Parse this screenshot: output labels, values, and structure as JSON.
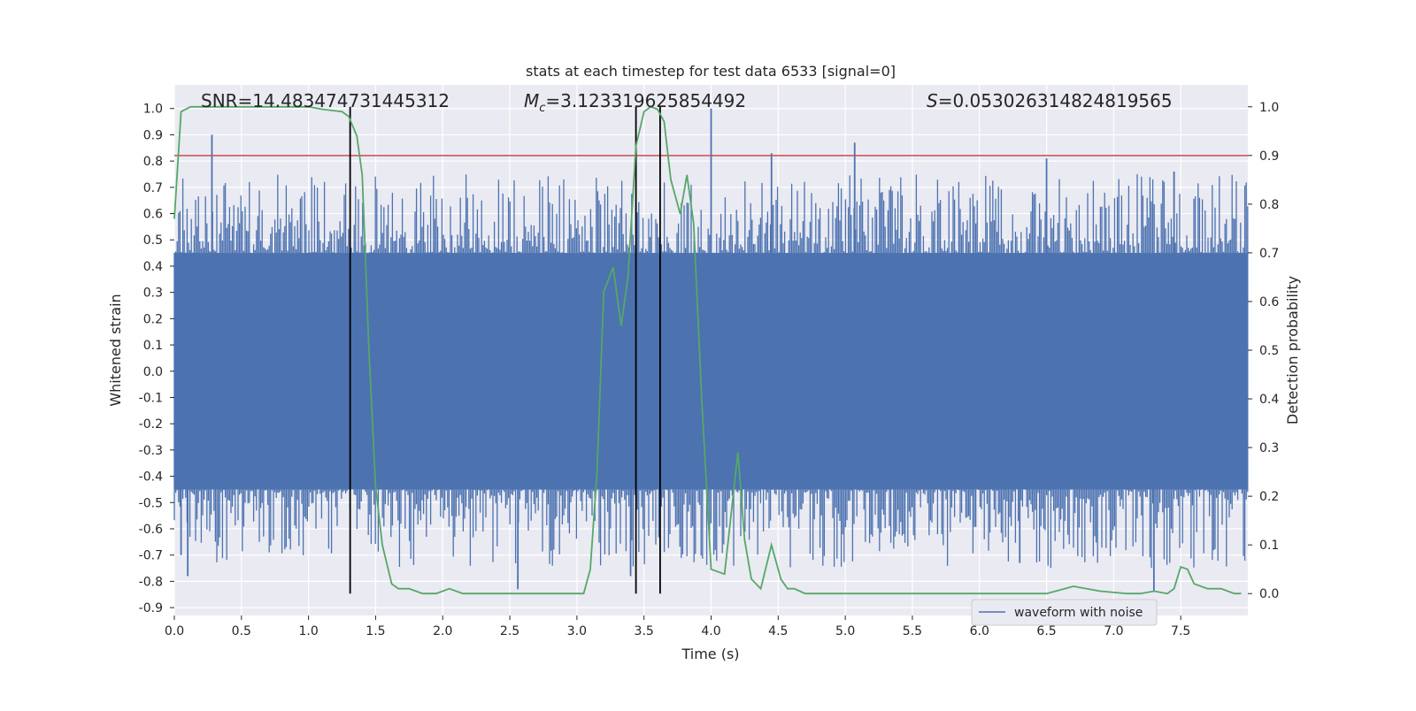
{
  "chart_data": {
    "type": "line",
    "title": "stats at each timestep for test data 6533 [signal=0]",
    "xlabel": "Time (s)",
    "ylabel": "Whitened strain",
    "ylabel_right": "Detection probability",
    "xlim": [
      0.0,
      8.0
    ],
    "ylim_left": [
      -0.93,
      1.09
    ],
    "ylim_right": [
      -0.045,
      1.045
    ],
    "x_ticks": [
      "0.0",
      "0.5",
      "1.0",
      "1.5",
      "2.0",
      "2.5",
      "3.0",
      "3.5",
      "4.0",
      "4.5",
      "5.0",
      "5.5",
      "6.0",
      "6.5",
      "7.0",
      "7.5"
    ],
    "y_ticks_left": [
      "1.0",
      "0.9",
      "0.8",
      "0.7",
      "0.6",
      "0.5",
      "0.4",
      "0.3",
      "0.2",
      "0.1",
      "0.0",
      "-0.1",
      "-0.2",
      "-0.3",
      "-0.4",
      "-0.5",
      "-0.6",
      "-0.7",
      "-0.8",
      "-0.9"
    ],
    "y_ticks_right": [
      "1.0",
      "0.9",
      "0.8",
      "0.7",
      "0.6",
      "0.5",
      "0.4",
      "0.3",
      "0.2",
      "0.1",
      "0.0"
    ],
    "annotations": {
      "snr": "SNR=14.483474731445312",
      "mc": "=3.123319625854492",
      "s": "=0.053026314824819565"
    },
    "legend": {
      "label": "waveform with noise",
      "placement": "lower-right"
    },
    "threshold": {
      "axis": "right",
      "value": 0.9,
      "color": "#c44e52"
    },
    "vertical_lines": [
      1.31,
      3.44,
      3.62
    ],
    "waveform": {
      "name": "waveform with noise",
      "color": "#4c72b0",
      "envelope_core": 0.45,
      "peaks": [
        {
          "t": 0.28,
          "v": 0.9
        },
        {
          "t": 4.0,
          "v": 1.0
        },
        {
          "t": 4.45,
          "v": 0.83
        },
        {
          "t": 5.07,
          "v": 0.87
        },
        {
          "t": 6.5,
          "v": 0.81
        },
        {
          "t": 7.3,
          "v": -0.84
        },
        {
          "t": 0.1,
          "v": -0.78
        },
        {
          "t": 2.56,
          "v": -0.83
        },
        {
          "t": 3.4,
          "v": -0.78
        },
        {
          "t": 7.45,
          "v": 0.76
        },
        {
          "t": 0.05,
          "v": -0.7
        },
        {
          "t": 6.3,
          "v": -0.73
        }
      ]
    },
    "probability": {
      "color": "#55a868",
      "x": [
        0.0,
        0.05,
        0.12,
        0.3,
        0.6,
        0.9,
        1.0,
        1.1,
        1.25,
        1.3,
        1.36,
        1.4,
        1.45,
        1.5,
        1.55,
        1.62,
        1.67,
        1.75,
        1.85,
        1.95,
        2.05,
        2.15,
        2.3,
        2.6,
        2.9,
        3.05,
        3.1,
        3.15,
        3.2,
        3.27,
        3.33,
        3.38,
        3.44,
        3.5,
        3.55,
        3.6,
        3.65,
        3.7,
        3.77,
        3.82,
        3.87,
        3.93,
        4.0,
        4.1,
        4.2,
        4.25,
        4.3,
        4.37,
        4.45,
        4.52,
        4.57,
        4.62,
        4.7,
        4.8,
        5.0,
        5.5,
        6.0,
        6.3,
        6.5,
        6.7,
        6.9,
        7.1,
        7.2,
        7.3,
        7.4,
        7.45,
        7.5,
        7.55,
        7.6,
        7.7,
        7.8,
        7.9,
        7.95
      ],
      "y": [
        0.77,
        0.99,
        1.0,
        1.0,
        1.0,
        1.0,
        1.0,
        0.995,
        0.99,
        0.98,
        0.94,
        0.86,
        0.5,
        0.22,
        0.1,
        0.02,
        0.01,
        0.01,
        0.0,
        0.0,
        0.01,
        0.0,
        0.0,
        0.0,
        0.0,
        0.0,
        0.05,
        0.25,
        0.62,
        0.67,
        0.55,
        0.65,
        0.92,
        0.99,
        1.0,
        0.995,
        0.97,
        0.85,
        0.78,
        0.86,
        0.76,
        0.4,
        0.05,
        0.04,
        0.29,
        0.11,
        0.03,
        0.01,
        0.1,
        0.03,
        0.01,
        0.01,
        0.0,
        0.0,
        0.0,
        0.0,
        0.0,
        0.0,
        0.0,
        0.015,
        0.005,
        0.0,
        0.0,
        0.005,
        0.0,
        0.01,
        0.055,
        0.05,
        0.02,
        0.01,
        0.01,
        0.0,
        0.0
      ]
    }
  }
}
